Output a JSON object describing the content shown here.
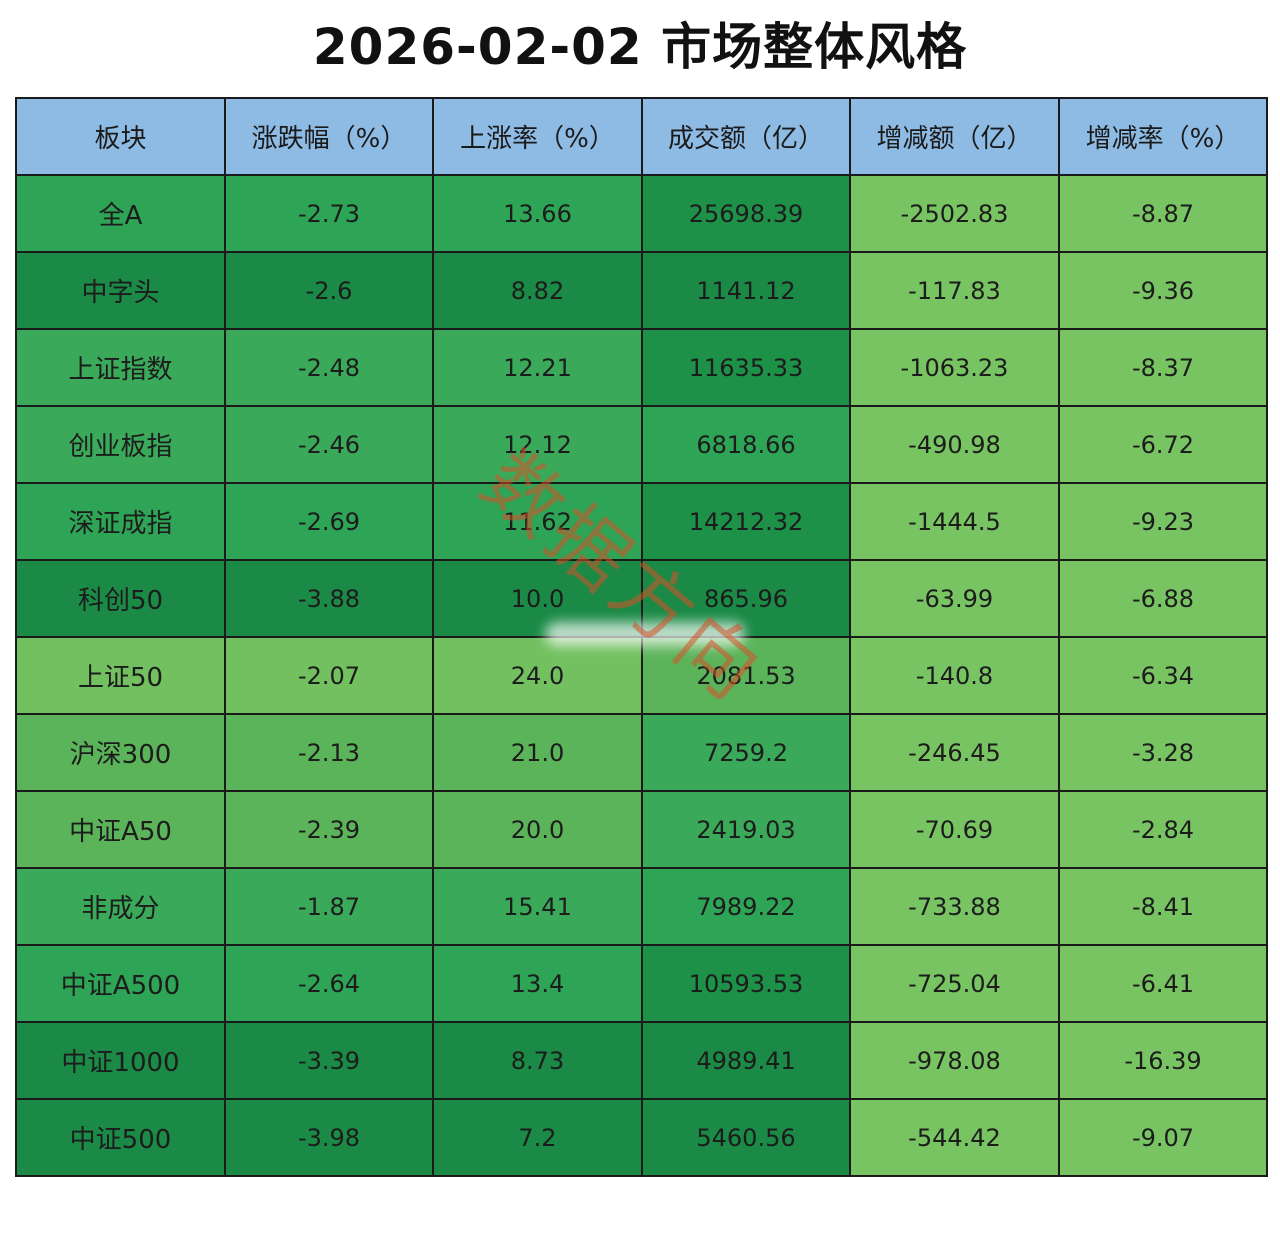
{
  "title": "2026-02-02 市场整体风格",
  "watermark_text": "数据方向",
  "table": {
    "headers": [
      "板块",
      "涨跌幅（%）",
      "上涨率（%）",
      "成交额（亿）",
      "增减额（亿）",
      "增减率（%）"
    ],
    "header_color": "#8ebbe3",
    "rows": [
      {
        "cells": [
          "全A",
          "-2.73",
          "13.66",
          "25698.39",
          "-2502.83",
          "-8.87"
        ],
        "colors": [
          "#2ea456",
          "#2ea456",
          "#2ea456",
          "#1e9148",
          "#78c462",
          "#78c462"
        ]
      },
      {
        "cells": [
          "中字头",
          "-2.6",
          "8.82",
          "1141.12",
          "-117.83",
          "-9.36"
        ],
        "colors": [
          "#1a8a46",
          "#1a8a46",
          "#1a8a46",
          "#1a8a46",
          "#78c462",
          "#78c462"
        ]
      },
      {
        "cells": [
          "上证指数",
          "-2.48",
          "12.21",
          "11635.33",
          "-1063.23",
          "-8.37"
        ],
        "colors": [
          "#3aaa5a",
          "#3aaa5a",
          "#3aaa5a",
          "#1e9148",
          "#78c462",
          "#78c462"
        ]
      },
      {
        "cells": [
          "创业板指",
          "-2.46",
          "12.12",
          "6818.66",
          "-490.98",
          "-6.72"
        ],
        "colors": [
          "#3aaa5a",
          "#3aaa5a",
          "#3aaa5a",
          "#2ea456",
          "#78c462",
          "#78c462"
        ]
      },
      {
        "cells": [
          "深证成指",
          "-2.69",
          "11.62",
          "14212.32",
          "-1444.5",
          "-9.23"
        ],
        "colors": [
          "#2ea456",
          "#2ea456",
          "#2ea456",
          "#1e9148",
          "#78c462",
          "#78c462"
        ]
      },
      {
        "cells": [
          "科创50",
          "-3.88",
          "10.0",
          "865.96",
          "-63.99",
          "-6.88"
        ],
        "colors": [
          "#1a8a46",
          "#1a8a46",
          "#1a8a46",
          "#1a8a46",
          "#78c462",
          "#78c462"
        ]
      },
      {
        "cells": [
          "上证50",
          "-2.07",
          "24.0",
          "2081.53",
          "-140.8",
          "-6.34"
        ],
        "colors": [
          "#72c060",
          "#72c060",
          "#72c060",
          "#5cb45a",
          "#78c462",
          "#78c462"
        ]
      },
      {
        "cells": [
          "沪深300",
          "-2.13",
          "21.0",
          "7259.2",
          "-246.45",
          "-3.28"
        ],
        "colors": [
          "#5cb45a",
          "#5cb45a",
          "#5cb45a",
          "#3aaa5a",
          "#78c462",
          "#78c462"
        ]
      },
      {
        "cells": [
          "中证A50",
          "-2.39",
          "20.0",
          "2419.03",
          "-70.69",
          "-2.84"
        ],
        "colors": [
          "#5cb45a",
          "#5cb45a",
          "#5cb45a",
          "#3aaa5a",
          "#78c462",
          "#78c462"
        ]
      },
      {
        "cells": [
          "非成分",
          "-1.87",
          "15.41",
          "7989.22",
          "-733.88",
          "-8.41"
        ],
        "colors": [
          "#3aaa5a",
          "#3aaa5a",
          "#3aaa5a",
          "#2ea456",
          "#78c462",
          "#78c462"
        ]
      },
      {
        "cells": [
          "中证A500",
          "-2.64",
          "13.4",
          "10593.53",
          "-725.04",
          "-6.41"
        ],
        "colors": [
          "#2ea456",
          "#2ea456",
          "#2ea456",
          "#1e9148",
          "#78c462",
          "#78c462"
        ]
      },
      {
        "cells": [
          "中证1000",
          "-3.39",
          "8.73",
          "4989.41",
          "-978.08",
          "-16.39"
        ],
        "colors": [
          "#1a8a46",
          "#1a8a46",
          "#1a8a46",
          "#1a8a46",
          "#78c462",
          "#78c462"
        ]
      },
      {
        "cells": [
          "中证500",
          "-3.98",
          "7.2",
          "5460.56",
          "-544.42",
          "-9.07"
        ],
        "colors": [
          "#1a8a46",
          "#1a8a46",
          "#1a8a46",
          "#1a8a46",
          "#78c462",
          "#78c462"
        ]
      }
    ]
  }
}
